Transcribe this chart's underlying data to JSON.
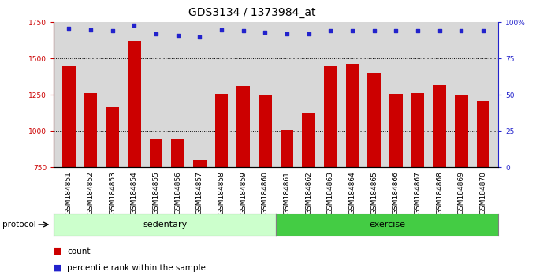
{
  "title": "GDS3134 / 1373984_at",
  "samples": [
    "GSM184851",
    "GSM184852",
    "GSM184853",
    "GSM184854",
    "GSM184855",
    "GSM184856",
    "GSM184857",
    "GSM184858",
    "GSM184859",
    "GSM184860",
    "GSM184861",
    "GSM184862",
    "GSM184863",
    "GSM184864",
    "GSM184865",
    "GSM184866",
    "GSM184867",
    "GSM184868",
    "GSM184869",
    "GSM184870"
  ],
  "count_values": [
    1450,
    1265,
    1165,
    1620,
    940,
    950,
    800,
    1255,
    1310,
    1250,
    1010,
    1120,
    1450,
    1465,
    1400,
    1260,
    1265,
    1315,
    1250,
    1210
  ],
  "percentile_values": [
    96,
    95,
    94,
    98,
    92,
    91,
    90,
    95,
    94,
    93,
    92,
    92,
    94,
    94,
    94,
    94,
    94,
    94,
    94,
    94
  ],
  "bar_color": "#cc0000",
  "dot_color": "#2222cc",
  "ylim_left": [
    750,
    1750
  ],
  "ylim_right": [
    0,
    100
  ],
  "yticks_left": [
    750,
    1000,
    1250,
    1500,
    1750
  ],
  "yticks_right": [
    0,
    25,
    50,
    75,
    100
  ],
  "sedentary_count": 10,
  "sedentary_label": "sedentary",
  "exercise_label": "exercise",
  "protocol_label": "protocol",
  "legend_count": "count",
  "legend_percentile": "percentile rank within the sample",
  "sedentary_color": "#ccffcc",
  "exercise_color": "#44cc44",
  "plot_bg_color": "#d8d8d8",
  "title_fontsize": 10,
  "tick_fontsize": 6.5,
  "label_fontsize": 8,
  "hgrid_values": [
    1000,
    1250,
    1500
  ]
}
